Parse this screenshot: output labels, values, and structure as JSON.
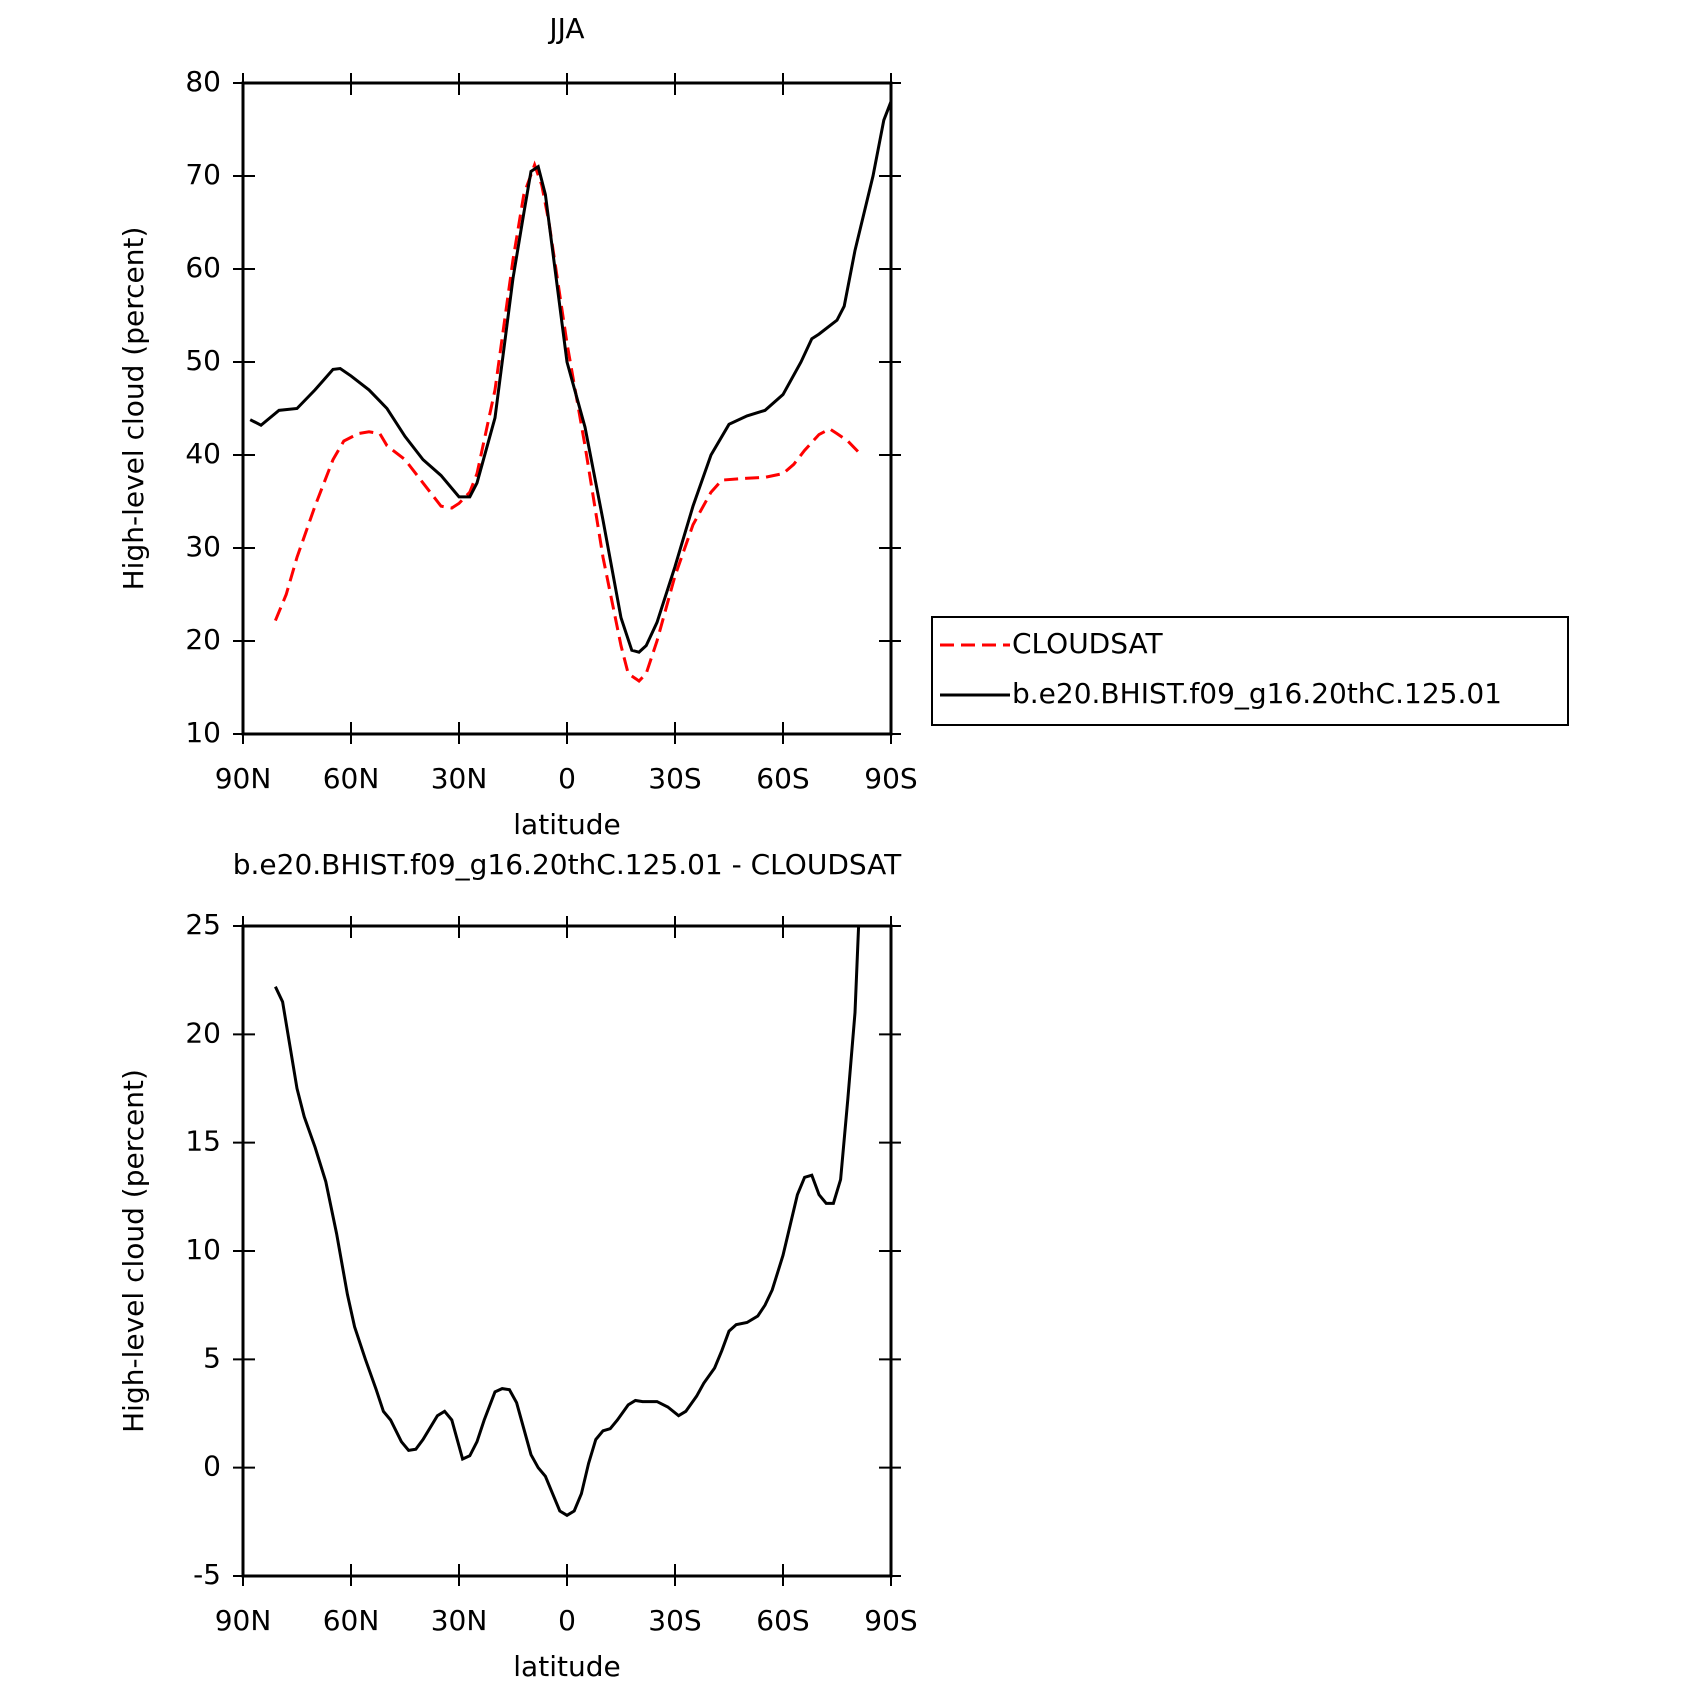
{
  "chart_data": [
    {
      "type": "line",
      "title": "JJA",
      "x_label": "latitude",
      "y_label": "High-level cloud (percent)",
      "xlim": [
        90,
        -90
      ],
      "xticks": [
        {
          "value": 90,
          "label": "90N"
        },
        {
          "value": 60,
          "label": "60N"
        },
        {
          "value": 30,
          "label": "30N"
        },
        0,
        {
          "value": -30,
          "label": "30S"
        },
        {
          "value": -60,
          "label": "60S"
        },
        {
          "value": -90,
          "label": "90S"
        }
      ],
      "ylim": [
        10,
        80
      ],
      "yticks": [
        10,
        20,
        30,
        40,
        50,
        60,
        70,
        80
      ],
      "series": [
        {
          "name": "CLOUDSAT",
          "color": "#ff0000",
          "dash": true,
          "x": [
            81,
            78,
            75,
            70,
            65,
            62,
            58,
            55,
            52,
            50,
            45,
            40,
            35,
            32,
            30,
            27,
            25,
            20,
            15,
            12,
            9,
            7,
            5,
            0,
            -5,
            -10,
            -15,
            -17,
            -20,
            -22,
            -25,
            -30,
            -35,
            -40,
            -43,
            -50,
            -55,
            -60,
            -63,
            -66,
            -70,
            -73,
            -75,
            -78,
            -81
          ],
          "values": [
            22.2,
            25,
            29,
            34.5,
            39.5,
            41.5,
            42.3,
            42.5,
            42.3,
            41,
            39.5,
            37,
            34.5,
            34.3,
            34.8,
            36,
            38,
            47,
            61,
            68,
            71.2,
            69,
            65,
            52,
            41,
            29,
            19.5,
            16.5,
            15.7,
            16.5,
            20,
            27,
            32.5,
            36,
            37.3,
            37.5,
            37.6,
            38,
            39,
            40.5,
            42.2,
            42.8,
            42.3,
            41.5,
            40.3
          ]
        },
        {
          "name": "b.e20.BHIST.f09_g16.20thC.125.01",
          "color": "#000000",
          "dash": false,
          "x": [
            88,
            85,
            80,
            75,
            70,
            65,
            63,
            60,
            55,
            50,
            45,
            40,
            35,
            30,
            27,
            25,
            20,
            15,
            12,
            10,
            8,
            6,
            3,
            0,
            -5,
            -10,
            -15,
            -18,
            -20,
            -22,
            -25,
            -30,
            -35,
            -40,
            -45,
            -50,
            -55,
            -60,
            -65,
            -68,
            -70,
            -75,
            -77,
            -80,
            -85,
            -88,
            -90
          ],
          "values": [
            43.8,
            43.2,
            44.8,
            45,
            47,
            49.2,
            49.3,
            48.5,
            47,
            45,
            42,
            39.5,
            37.8,
            35.5,
            35.5,
            37,
            44,
            59,
            66,
            70.5,
            71,
            68,
            59,
            50,
            43,
            33,
            22.5,
            19,
            18.8,
            19.5,
            22,
            28,
            34.5,
            40,
            43.3,
            44.2,
            44.8,
            46.5,
            50,
            52.5,
            53,
            54.5,
            56,
            62,
            70,
            76,
            78
          ]
        }
      ]
    },
    {
      "type": "line",
      "title": "b.e20.BHIST.f09_g16.20thC.125.01 - CLOUDSAT",
      "x_label": "latitude",
      "y_label": "High-level cloud (percent)",
      "xlim": [
        90,
        -90
      ],
      "xticks": [
        {
          "value": 90,
          "label": "90N"
        },
        {
          "value": 60,
          "label": "60N"
        },
        {
          "value": 30,
          "label": "30N"
        },
        0,
        {
          "value": -30,
          "label": "30S"
        },
        {
          "value": -60,
          "label": "60S"
        },
        {
          "value": -90,
          "label": "90S"
        }
      ],
      "ylim": [
        -5,
        25
      ],
      "yticks": [
        -5,
        0,
        5,
        10,
        15,
        20,
        25
      ],
      "series": [
        {
          "color": "#000000",
          "dash": false,
          "x": [
            81,
            79,
            77,
            75,
            73,
            70,
            67,
            64,
            61,
            59,
            56,
            53,
            51,
            49,
            46,
            44,
            42,
            40,
            36,
            34,
            32,
            30,
            29,
            27,
            25,
            23,
            20,
            18,
            16,
            14,
            12,
            10,
            8,
            6,
            4,
            2,
            0,
            -2,
            -4,
            -6,
            -8,
            -10,
            -12,
            -14,
            -17,
            -19,
            -21,
            -25,
            -28,
            -31,
            -33,
            -36,
            -38,
            -41,
            -43,
            -45,
            -47,
            -50,
            -53,
            -55,
            -57,
            -60,
            -62,
            -64,
            -66,
            -68,
            -70,
            -72,
            -74,
            -76,
            -78,
            -80,
            -81
          ],
          "values": [
            22.2,
            21.5,
            19.5,
            17.5,
            16.2,
            14.8,
            13.2,
            10.8,
            8,
            6.5,
            5,
            3.6,
            2.6,
            2.2,
            1.2,
            0.8,
            0.85,
            1.3,
            2.4,
            2.6,
            2.2,
            1.0,
            0.4,
            0.55,
            1.2,
            2.2,
            3.5,
            3.65,
            3.6,
            3.0,
            1.8,
            0.6,
            0,
            -0.4,
            -1.2,
            -2,
            -2.2,
            -2,
            -1.2,
            0.2,
            1.3,
            1.7,
            1.8,
            2.2,
            2.9,
            3.1,
            3.05,
            3.05,
            2.8,
            2.4,
            2.6,
            3.3,
            3.9,
            4.6,
            5.4,
            6.3,
            6.6,
            6.7,
            7.0,
            7.5,
            8.2,
            9.8,
            11.2,
            12.6,
            13.4,
            13.5,
            12.6,
            12.2,
            12.2,
            13.3,
            17,
            21,
            25
          ]
        }
      ]
    }
  ]
}
